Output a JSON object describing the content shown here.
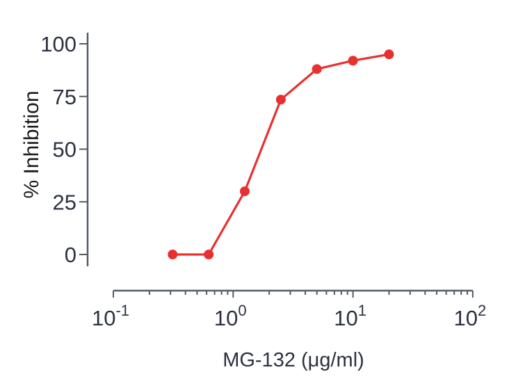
{
  "chart_data": {
    "type": "line",
    "title": "",
    "xlabel": "MG-132 (μg/ml)",
    "ylabel": "% Inhibition",
    "xscale": "log",
    "xlim": [
      0.1,
      100
    ],
    "ylim": [
      -5,
      105
    ],
    "x_ticks": [
      {
        "base": "10",
        "exp": "-1",
        "value": 0.1
      },
      {
        "base": "10",
        "exp": "0",
        "value": 1
      },
      {
        "base": "10",
        "exp": "1",
        "value": 10
      },
      {
        "base": "10",
        "exp": "2",
        "value": 100
      }
    ],
    "y_ticks": [
      0,
      25,
      50,
      75,
      100
    ],
    "grid": false,
    "legend": null,
    "series": [
      {
        "name": "MG-132",
        "color": "#e8302f",
        "x": [
          0.3125,
          0.625,
          1.25,
          2.5,
          5,
          10,
          20
        ],
        "y": [
          0,
          0,
          30,
          73.5,
          88,
          92,
          95
        ]
      }
    ]
  },
  "colors": {
    "axis": "#555b63",
    "series": "#e8302f"
  }
}
